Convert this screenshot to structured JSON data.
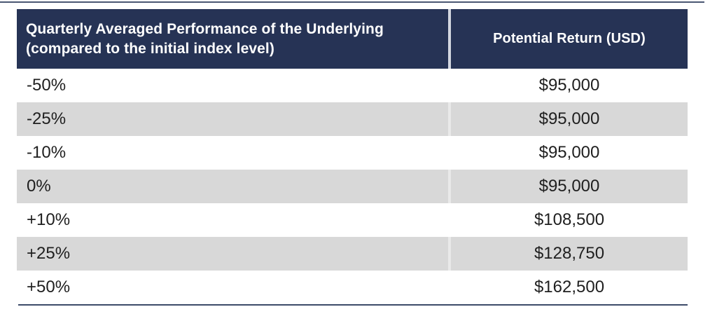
{
  "colors": {
    "header_background": "#263355",
    "header_text": "#ffffff",
    "alternate_row_background": "#d8d8d8",
    "row_background": "#ffffff",
    "body_text": "#1f1f1f",
    "rule_line": "#3d4b69"
  },
  "table": {
    "header": {
      "performance_label_line1": "Quarterly Averaged Performance of the Underlying",
      "performance_label_line2": "(compared to the initial index level)",
      "return_label": "Potential Return (USD)"
    },
    "rows": [
      {
        "performance": "-50%",
        "potential_return": "$95,000"
      },
      {
        "performance": "-25%",
        "potential_return": "$95,000"
      },
      {
        "performance": "-10%",
        "potential_return": "$95,000"
      },
      {
        "performance": "0%",
        "potential_return": "$95,000"
      },
      {
        "performance": "+10%",
        "potential_return": "$108,500"
      },
      {
        "performance": "+25%",
        "potential_return": "$128,750"
      },
      {
        "performance": "+50%",
        "potential_return": "$162,500"
      }
    ]
  },
  "chart_data": {
    "type": "table",
    "columns": [
      "Quarterly Averaged Performance of the Underlying (compared to the initial index level)",
      "Potential Return (USD)"
    ],
    "rows": [
      [
        "-50%",
        "$95,000"
      ],
      [
        "-25%",
        "$95,000"
      ],
      [
        "-10%",
        "$95,000"
      ],
      [
        "0%",
        "$95,000"
      ],
      [
        "+10%",
        "$108,500"
      ],
      [
        "+25%",
        "$128,750"
      ],
      [
        "+50%",
        "$162,500"
      ]
    ]
  }
}
